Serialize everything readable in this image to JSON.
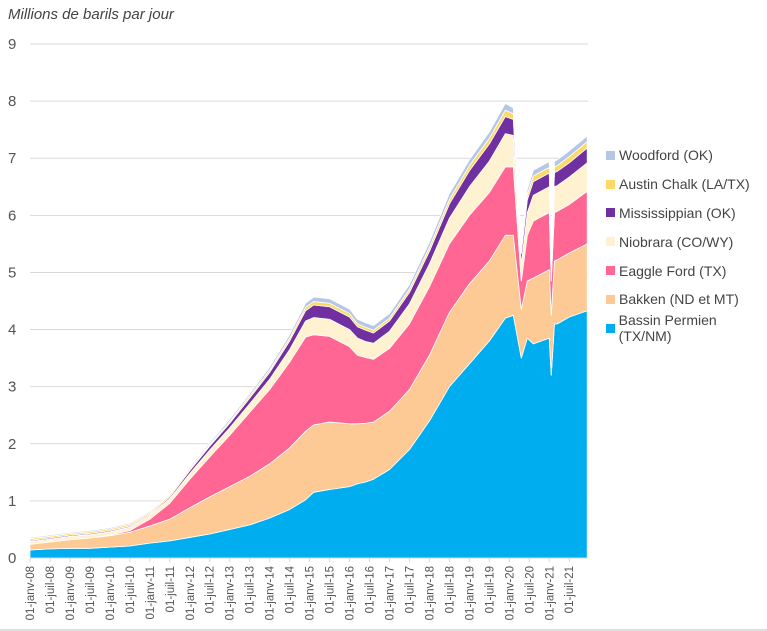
{
  "chart_data": {
    "type": "area",
    "stacked": true,
    "title": "",
    "ylabel": "Millions de barils par jour",
    "xlabel": "",
    "ylim": [
      0,
      9
    ],
    "yticks": [
      0,
      1,
      2,
      3,
      4,
      5,
      6,
      7,
      8,
      9
    ],
    "grid": true,
    "legend_position": "right",
    "xtick_labels": [
      "01-janv-08",
      "01-juil-08",
      "01-janv-09",
      "01-juil-09",
      "01-janv-10",
      "01-juil-10",
      "01-janv-11",
      "01-juil-11",
      "01-janv-12",
      "01-juil-12",
      "01-janv-13",
      "01-juil-13",
      "01-janv-14",
      "01-juil-14",
      "01-janv-15",
      "01-juil-15",
      "01-janv-16",
      "01-juil-16",
      "01-janv-17",
      "01-juil-17",
      "01-janv-18",
      "01-juil-18",
      "01-janv-19",
      "01-juil-19",
      "01-janv-20",
      "01-juil-20",
      "01-janv-21",
      "01-juil-21"
    ],
    "x": [
      2008.0,
      2008.5,
      2009.0,
      2009.5,
      2010.0,
      2010.5,
      2011.0,
      2011.5,
      2012.0,
      2012.5,
      2013.0,
      2013.5,
      2014.0,
      2014.5,
      2014.9,
      2015.1,
      2015.5,
      2016.0,
      2016.2,
      2016.4,
      2016.6,
      2017.0,
      2017.5,
      2018.0,
      2018.5,
      2019.0,
      2019.5,
      2019.9,
      2020.1,
      2020.3,
      2020.45,
      2020.6,
      2021.0,
      2021.05,
      2021.13,
      2021.2,
      2021.5,
      2021.95
    ],
    "series": [
      {
        "name": "Bassin Permien (TX/NM)",
        "color": "#00AEEF",
        "values": [
          0.14,
          0.16,
          0.17,
          0.17,
          0.19,
          0.21,
          0.26,
          0.3,
          0.36,
          0.42,
          0.5,
          0.58,
          0.7,
          0.85,
          1.02,
          1.15,
          1.2,
          1.25,
          1.3,
          1.33,
          1.38,
          1.55,
          1.9,
          2.4,
          3.0,
          3.4,
          3.8,
          4.2,
          4.25,
          3.5,
          3.85,
          3.75,
          3.85,
          3.2,
          4.1,
          4.1,
          4.22,
          4.33
        ]
      },
      {
        "name": "Bakken (ND et MT)",
        "color": "#FDC994",
        "values": [
          0.1,
          0.12,
          0.15,
          0.18,
          0.2,
          0.24,
          0.3,
          0.38,
          0.52,
          0.65,
          0.75,
          0.85,
          0.95,
          1.08,
          1.2,
          1.18,
          1.18,
          1.1,
          1.05,
          1.03,
          1.0,
          1.02,
          1.05,
          1.15,
          1.3,
          1.4,
          1.4,
          1.45,
          1.4,
          0.85,
          1.0,
          1.15,
          1.2,
          1.05,
          1.1,
          1.12,
          1.12,
          1.17
        ]
      },
      {
        "name": "Eaggle Ford (TX)",
        "color": "#FF6693",
        "values": [
          0.0,
          0.0,
          0.0,
          0.0,
          0.01,
          0.03,
          0.12,
          0.28,
          0.5,
          0.7,
          0.9,
          1.12,
          1.3,
          1.5,
          1.65,
          1.58,
          1.5,
          1.35,
          1.2,
          1.15,
          1.1,
          1.1,
          1.15,
          1.2,
          1.2,
          1.2,
          1.2,
          1.2,
          1.2,
          0.5,
          0.8,
          1.0,
          1.0,
          0.6,
          0.85,
          0.85,
          0.85,
          0.92
        ]
      },
      {
        "name": "Niobrara (CO/WY)",
        "color": "#FFF2D1",
        "values": [
          0.05,
          0.05,
          0.06,
          0.06,
          0.06,
          0.06,
          0.07,
          0.08,
          0.1,
          0.12,
          0.13,
          0.15,
          0.18,
          0.22,
          0.28,
          0.3,
          0.3,
          0.3,
          0.3,
          0.28,
          0.28,
          0.3,
          0.35,
          0.4,
          0.45,
          0.5,
          0.55,
          0.58,
          0.55,
          0.3,
          0.4,
          0.45,
          0.45,
          0.3,
          0.45,
          0.45,
          0.48,
          0.5
        ]
      },
      {
        "name": "Mississippian (OK)",
        "color": "#7030A0",
        "values": [
          0.02,
          0.02,
          0.02,
          0.02,
          0.02,
          0.02,
          0.02,
          0.03,
          0.05,
          0.07,
          0.08,
          0.1,
          0.12,
          0.15,
          0.18,
          0.22,
          0.22,
          0.22,
          0.2,
          0.2,
          0.18,
          0.18,
          0.2,
          0.22,
          0.25,
          0.28,
          0.3,
          0.3,
          0.28,
          0.18,
          0.22,
          0.24,
          0.24,
          0.18,
          0.25,
          0.25,
          0.25,
          0.26
        ]
      },
      {
        "name": "Austin Chalk (LA/TX)",
        "color": "#FFD966",
        "values": [
          0.03,
          0.03,
          0.03,
          0.03,
          0.03,
          0.03,
          0.03,
          0.03,
          0.03,
          0.03,
          0.03,
          0.04,
          0.04,
          0.05,
          0.06,
          0.06,
          0.06,
          0.06,
          0.05,
          0.05,
          0.05,
          0.05,
          0.06,
          0.07,
          0.08,
          0.09,
          0.1,
          0.11,
          0.1,
          0.07,
          0.09,
          0.1,
          0.1,
          0.08,
          0.1,
          0.1,
          0.11,
          0.11
        ]
      },
      {
        "name": "Woodford (OK)",
        "color": "#B4C7E7",
        "values": [
          0.02,
          0.02,
          0.02,
          0.02,
          0.02,
          0.02,
          0.02,
          0.02,
          0.03,
          0.03,
          0.04,
          0.04,
          0.05,
          0.06,
          0.07,
          0.08,
          0.08,
          0.08,
          0.08,
          0.08,
          0.08,
          0.08,
          0.08,
          0.09,
          0.1,
          0.1,
          0.11,
          0.12,
          0.1,
          0.07,
          0.09,
          0.1,
          0.1,
          0.07,
          0.1,
          0.1,
          0.1,
          0.1
        ]
      }
    ]
  }
}
